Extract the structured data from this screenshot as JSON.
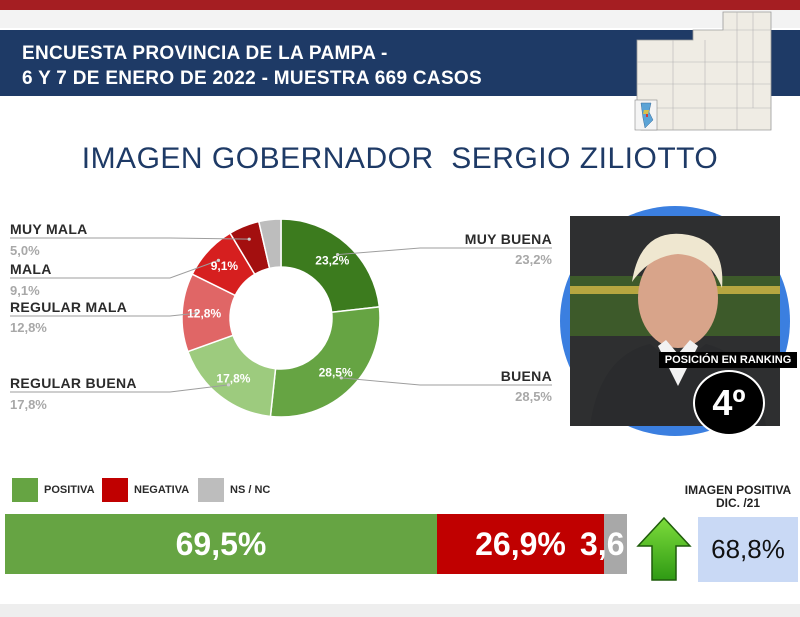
{
  "header": {
    "line1": "ENCUESTA PROVINCIA DE LA PAMPA -",
    "line2": "6 Y 7 DE ENERO DE 2022 - MUESTRA 669 CASOS"
  },
  "title": "IMAGEN GOBERNADOR  SERGIO ZILIOTTO",
  "chart_data": [
    {
      "type": "pie",
      "title": "",
      "categories": [
        "MUY BUENA",
        "BUENA",
        "REGULAR BUENA",
        "REGULAR MALA",
        "MALA",
        "MUY MALA",
        "NS / NC"
      ],
      "values": [
        23.2,
        28.5,
        17.8,
        12.8,
        9.1,
        5.0,
        3.6
      ],
      "value_labels": [
        "23,2%",
        "28,5%",
        "17,8%",
        "12,8%",
        "9,1%",
        "",
        ""
      ],
      "legend_values": [
        "23,2%",
        "28,5%",
        "17,8%",
        "12,8%",
        "9,1%",
        "5,0%",
        ""
      ],
      "colors": [
        "#3c7b1e",
        "#66a443",
        "#9dcb7e",
        "#e06666",
        "#d61f1f",
        "#a30f0f",
        "#bdbdbd"
      ],
      "donut": true
    },
    {
      "type": "bar",
      "orientation": "horizontal",
      "stacked": true,
      "categories": [
        "POSITIVA",
        "NEGATIVA",
        "NS / NC"
      ],
      "values": [
        69.5,
        26.9,
        3.6
      ],
      "value_labels": [
        "69,5%",
        "26,9%",
        "3,6"
      ],
      "colors": [
        "#66a443",
        "#c00000",
        "#a8a8a8"
      ]
    }
  ],
  "ranking": {
    "label": "POSICIÓN EN RANKING",
    "value": "4º"
  },
  "previous": {
    "title": "IMAGEN POSITIVA DIC. /21",
    "value": "68,8%"
  }
}
